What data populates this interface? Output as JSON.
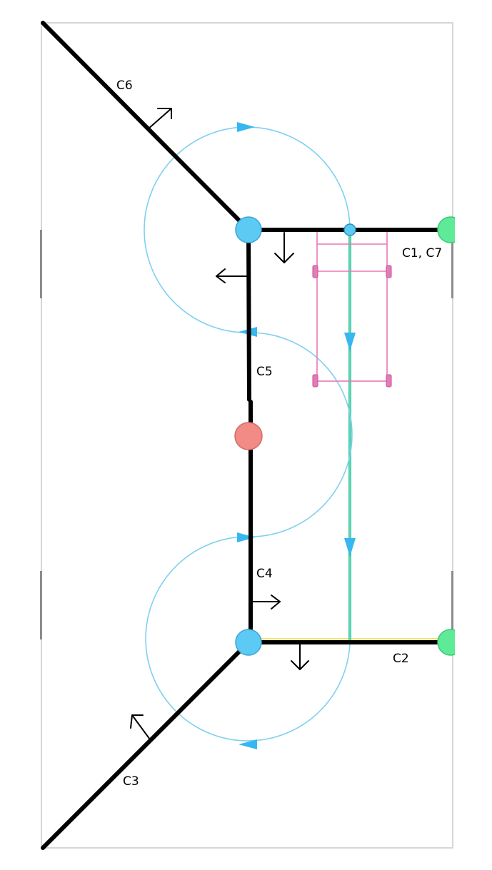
{
  "labels": {
    "c6": "C6",
    "c1_c7": "C1, C7",
    "c5": "C5",
    "c4": "C4",
    "c2": "C2",
    "c3": "C3"
  },
  "colors": {
    "boundary": "#000000",
    "path": "#7fd0ef",
    "arrowhead": "#38b6ef",
    "node_blue": "#5ccaf2",
    "node_red": "#f28a86",
    "node_green": "#5eea97",
    "robot": "#e879b9",
    "straight_track": "#3ccf8a"
  }
}
